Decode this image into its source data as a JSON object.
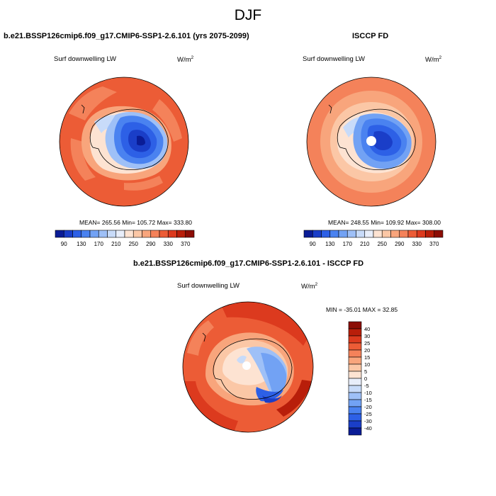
{
  "main_title": "DJF",
  "chart_data": [
    {
      "type": "heatmap",
      "projection": "south polar stereographic",
      "title": "b.e21.BSSP126cmip6.f09_g17.CMIP6-SSP1-2.6.101 (yrs 2075-2099)",
      "variable": "Surf downwelling LW",
      "units_base": "W/m",
      "units_exp": "2",
      "stats_text": "MEAN= 265.56  Min= 105.72  Max= 333.80",
      "mean": 265.56,
      "min": 105.72,
      "max": 333.8,
      "colorbar": {
        "levels": [
          90,
          110,
          130,
          150,
          170,
          190,
          210,
          230,
          250,
          270,
          290,
          310,
          330,
          350,
          370
        ],
        "labels": [
          "90",
          "130",
          "170",
          "210",
          "250",
          "290",
          "330",
          "370"
        ],
        "colors": [
          "#0a1c96",
          "#1a3ec8",
          "#2d60e6",
          "#4a82f0",
          "#72a2f4",
          "#9ec0f7",
          "#c8dbf9",
          "#e8eefa",
          "#fde3d2",
          "#fbc7a6",
          "#f8a57c",
          "#f4825a",
          "#ec5c36",
          "#dc3a1e",
          "#b81e0a",
          "#8c0d05"
        ]
      }
    },
    {
      "type": "heatmap",
      "projection": "south polar stereographic",
      "title": "ISCCP FD",
      "variable": "Surf downwelling LW",
      "units_base": "W/m",
      "units_exp": "2",
      "stats_text": "MEAN= 248.55  Min= 109.92  Max= 308.00",
      "mean": 248.55,
      "min": 109.92,
      "max": 308.0,
      "colorbar": {
        "levels": [
          90,
          110,
          130,
          150,
          170,
          190,
          210,
          230,
          250,
          270,
          290,
          310,
          330,
          350,
          370
        ],
        "labels": [
          "90",
          "130",
          "170",
          "210",
          "250",
          "290",
          "330",
          "370"
        ],
        "colors": [
          "#0a1c96",
          "#1a3ec8",
          "#2d60e6",
          "#4a82f0",
          "#72a2f4",
          "#9ec0f7",
          "#c8dbf9",
          "#e8eefa",
          "#fde3d2",
          "#fbc7a6",
          "#f8a57c",
          "#f4825a",
          "#ec5c36",
          "#dc3a1e",
          "#b81e0a",
          "#8c0d05"
        ]
      }
    },
    {
      "type": "heatmap",
      "projection": "south polar stereographic",
      "title": "b.e21.BSSP126cmip6.f09_g17.CMIP6-SSP1-2.6.101 - ISCCP FD",
      "variable": "Surf downwelling LW",
      "units_base": "W/m",
      "units_exp": "2",
      "stats_text": "MIN = -35.01 MAX =  32.85",
      "min": -35.01,
      "max": 32.85,
      "colorbar": {
        "orientation": "vertical",
        "labels": [
          "40",
          "30",
          "25",
          "20",
          "15",
          "10",
          "5",
          "0",
          "-5",
          "-10",
          "-15",
          "-20",
          "-25",
          "-30",
          "-40"
        ],
        "colors": [
          "#8c0d05",
          "#b81e0a",
          "#dc3a1e",
          "#ec5c36",
          "#f4825a",
          "#f8a57c",
          "#fbc7a6",
          "#fde3d2",
          "#e8eefa",
          "#c8dbf9",
          "#9ec0f7",
          "#72a2f4",
          "#4a82f0",
          "#2d60e6",
          "#1a3ec8",
          "#0a1c96"
        ]
      }
    }
  ]
}
